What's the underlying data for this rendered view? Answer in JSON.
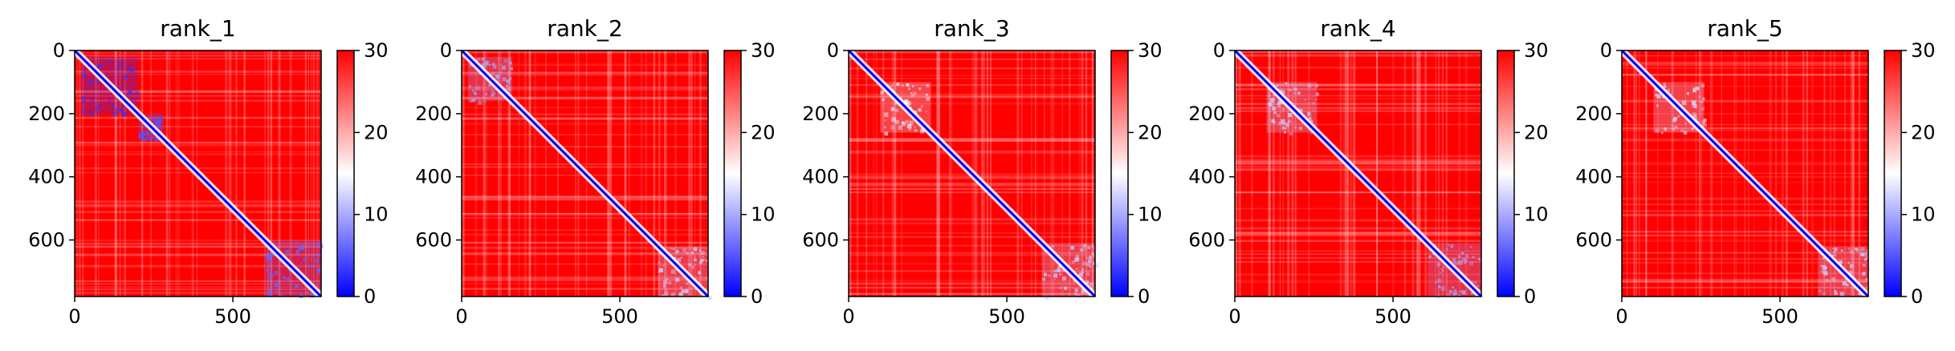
{
  "colors": {
    "low": "#0000ff",
    "mid": "#ffffff",
    "high": "#ff0000",
    "axis": "#000000",
    "text": "#000000",
    "background": "#ffffff"
  },
  "colormap": "bwr",
  "chart_data": [
    {
      "type": "heatmap",
      "title": "rank_1",
      "xlabel": "",
      "ylabel": "",
      "xlim": [
        0,
        779
      ],
      "ylim": [
        779,
        0
      ],
      "x_ticks": [
        0,
        500
      ],
      "y_ticks": [
        0,
        200,
        400,
        600
      ],
      "colorbar": {
        "range": [
          0,
          30
        ],
        "ticks": [
          0,
          10,
          20,
          30
        ]
      },
      "blocks": [
        {
          "start": 20,
          "end": 200,
          "level": 3
        },
        {
          "start": 200,
          "end": 280,
          "level": 5
        },
        {
          "start": 600,
          "end": 779,
          "level": 6
        }
      ]
    },
    {
      "type": "heatmap",
      "title": "rank_2",
      "xlabel": "",
      "ylabel": "",
      "xlim": [
        0,
        779
      ],
      "ylim": [
        779,
        0
      ],
      "x_ticks": [
        0,
        500
      ],
      "y_ticks": [
        0,
        200,
        400,
        600
      ],
      "colorbar": {
        "range": [
          0,
          30
        ],
        "ticks": [
          0,
          10,
          20,
          30
        ]
      },
      "blocks": [
        {
          "start": 20,
          "end": 160,
          "level": 10
        },
        {
          "start": 620,
          "end": 779,
          "level": 12
        }
      ]
    },
    {
      "type": "heatmap",
      "title": "rank_3",
      "xlabel": "",
      "ylabel": "",
      "xlim": [
        0,
        779
      ],
      "ylim": [
        779,
        0
      ],
      "x_ticks": [
        0,
        500
      ],
      "y_ticks": [
        0,
        200,
        400,
        600
      ],
      "colorbar": {
        "range": [
          0,
          30
        ],
        "ticks": [
          0,
          10,
          20,
          30
        ]
      },
      "blocks": [
        {
          "start": 100,
          "end": 260,
          "level": 14
        },
        {
          "start": 610,
          "end": 779,
          "level": 12
        }
      ]
    },
    {
      "type": "heatmap",
      "title": "rank_4",
      "xlabel": "",
      "ylabel": "",
      "xlim": [
        0,
        779
      ],
      "ylim": [
        779,
        0
      ],
      "x_ticks": [
        0,
        500
      ],
      "y_ticks": [
        0,
        200,
        400,
        600
      ],
      "colorbar": {
        "range": [
          0,
          30
        ],
        "ticks": [
          0,
          10,
          20,
          30
        ]
      },
      "blocks": [
        {
          "start": 100,
          "end": 260,
          "level": 12
        },
        {
          "start": 610,
          "end": 779,
          "level": 10
        }
      ]
    },
    {
      "type": "heatmap",
      "title": "rank_5",
      "xlabel": "",
      "ylabel": "",
      "xlim": [
        0,
        779
      ],
      "ylim": [
        779,
        0
      ],
      "x_ticks": [
        0,
        500
      ],
      "y_ticks": [
        0,
        200,
        400,
        600
      ],
      "colorbar": {
        "range": [
          0,
          30
        ],
        "ticks": [
          0,
          10,
          20,
          30
        ]
      },
      "blocks": [
        {
          "start": 100,
          "end": 260,
          "level": 13
        },
        {
          "start": 620,
          "end": 779,
          "level": 12
        }
      ]
    }
  ]
}
